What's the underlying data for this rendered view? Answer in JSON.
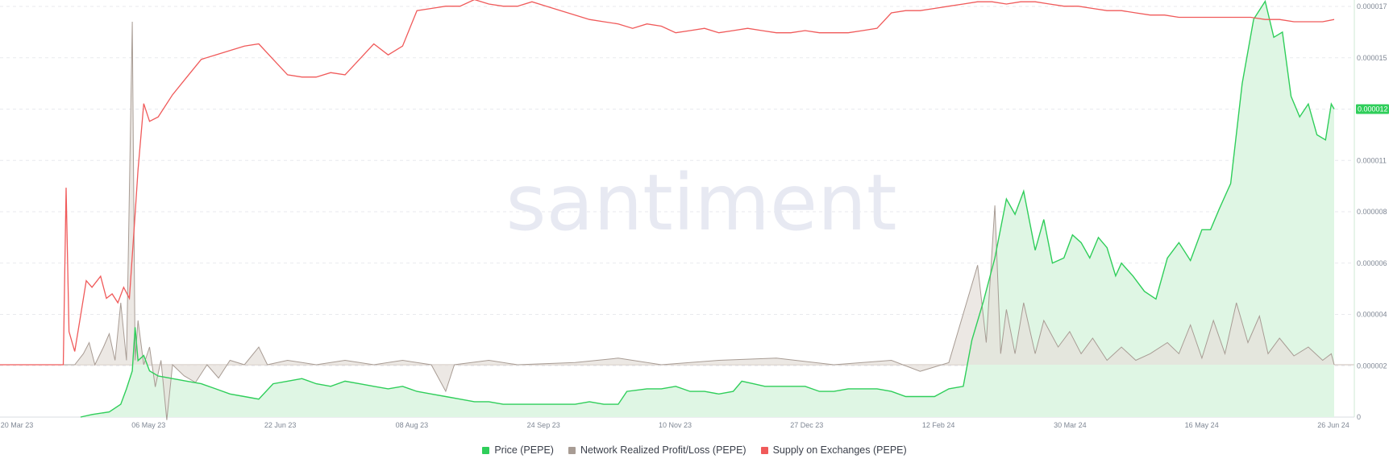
{
  "watermark": "santiment",
  "colors": {
    "price": "#2fce5a",
    "price_fill": "#dff6e4",
    "nrpl": "#a89c94",
    "nrpl_fill": "#e6e0db",
    "supply": "#f05a5a",
    "grid": "#e8eaee",
    "badge": "#2fce5a"
  },
  "legend": [
    {
      "label": "Price (PEPE)",
      "color": "#2fce5a"
    },
    {
      "label": "Network Realized Profit/Loss (PEPE)",
      "color": "#a89c94"
    },
    {
      "label": "Supply on Exchanges (PEPE)",
      "color": "#f05a5a"
    }
  ],
  "price_badge": "0.000012",
  "chart_data": {
    "type": "line",
    "x_tick_labels": [
      "20 Mar 23",
      "06 May 23",
      "22 Jun 23",
      "08 Aug 23",
      "24 Sep 23",
      "10 Nov 23",
      "27 Dec 23",
      "12 Feb 24",
      "30 Mar 24",
      "16 May 24",
      "26 Jun 24"
    ],
    "y_right_tick_labels": [
      "0",
      "0.000002",
      "0.000004",
      "0.000006",
      "0.000008",
      "0.000011",
      "0.000013",
      "0.000015",
      "0.000017"
    ],
    "y_right_range": [
      0,
      1.6e-05
    ],
    "x_range_days": [
      0,
      464
    ],
    "series": [
      {
        "name": "Price (PEPE)",
        "axis": "right",
        "points": [
          [
            0,
            null
          ],
          [
            28,
            0
          ],
          [
            32,
            1e-07
          ],
          [
            38,
            2e-07
          ],
          [
            42,
            5e-07
          ],
          [
            44,
            1.1e-06
          ],
          [
            46,
            1.8e-06
          ],
          [
            47,
            3.5e-06
          ],
          [
            48,
            2.2e-06
          ],
          [
            50,
            2.4e-06
          ],
          [
            52,
            1.8e-06
          ],
          [
            55,
            1.6e-06
          ],
          [
            60,
            1.5e-06
          ],
          [
            65,
            1.4e-06
          ],
          [
            70,
            1.3e-06
          ],
          [
            75,
            1.1e-06
          ],
          [
            80,
            9e-07
          ],
          [
            85,
            8e-07
          ],
          [
            90,
            7e-07
          ],
          [
            95,
            1.3e-06
          ],
          [
            100,
            1.4e-06
          ],
          [
            105,
            1.5e-06
          ],
          [
            110,
            1.3e-06
          ],
          [
            115,
            1.2e-06
          ],
          [
            120,
            1.4e-06
          ],
          [
            125,
            1.3e-06
          ],
          [
            130,
            1.2e-06
          ],
          [
            135,
            1.1e-06
          ],
          [
            140,
            1.2e-06
          ],
          [
            145,
            1e-06
          ],
          [
            150,
            9e-07
          ],
          [
            155,
            8e-07
          ],
          [
            160,
            7e-07
          ],
          [
            165,
            6e-07
          ],
          [
            170,
            6e-07
          ],
          [
            175,
            5e-07
          ],
          [
            180,
            5e-07
          ],
          [
            185,
            5e-07
          ],
          [
            190,
            5e-07
          ],
          [
            195,
            5e-07
          ],
          [
            200,
            5e-07
          ],
          [
            205,
            6e-07
          ],
          [
            210,
            5e-07
          ],
          [
            215,
            5e-07
          ],
          [
            218,
            1e-06
          ],
          [
            225,
            1.1e-06
          ],
          [
            230,
            1.1e-06
          ],
          [
            235,
            1.2e-06
          ],
          [
            240,
            1e-06
          ],
          [
            245,
            1e-06
          ],
          [
            250,
            9e-07
          ],
          [
            255,
            1e-06
          ],
          [
            258,
            1.4e-06
          ],
          [
            262,
            1.3e-06
          ],
          [
            266,
            1.2e-06
          ],
          [
            270,
            1.2e-06
          ],
          [
            275,
            1.2e-06
          ],
          [
            280,
            1.2e-06
          ],
          [
            285,
            1e-06
          ],
          [
            290,
            1e-06
          ],
          [
            295,
            1.1e-06
          ],
          [
            300,
            1.1e-06
          ],
          [
            305,
            1.1e-06
          ],
          [
            310,
            1e-06
          ],
          [
            315,
            8e-07
          ],
          [
            320,
            8e-07
          ],
          [
            325,
            8e-07
          ],
          [
            330,
            1.1e-06
          ],
          [
            335,
            1.2e-06
          ],
          [
            338,
            3e-06
          ],
          [
            342,
            4.5e-06
          ],
          [
            346,
            6.2e-06
          ],
          [
            350,
            8.5e-06
          ],
          [
            353,
            7.9e-06
          ],
          [
            356,
            8.8e-06
          ],
          [
            360,
            6.5e-06
          ],
          [
            363,
            7.7e-06
          ],
          [
            366,
            6e-06
          ],
          [
            370,
            6.2e-06
          ],
          [
            373,
            7.1e-06
          ],
          [
            376,
            6.8e-06
          ],
          [
            379,
            6.2e-06
          ],
          [
            382,
            7e-06
          ],
          [
            385,
            6.6e-06
          ],
          [
            388,
            5.5e-06
          ],
          [
            390,
            6e-06
          ],
          [
            394,
            5.5e-06
          ],
          [
            398,
            4.9e-06
          ],
          [
            402,
            4.6e-06
          ],
          [
            406,
            6.2e-06
          ],
          [
            410,
            6.8e-06
          ],
          [
            414,
            6.1e-06
          ],
          [
            418,
            7.3e-06
          ],
          [
            421,
            7.3e-06
          ],
          [
            424,
            8.1e-06
          ],
          [
            428,
            9.1e-06
          ],
          [
            432,
            1.3e-05
          ],
          [
            436,
            1.55e-05
          ],
          [
            440,
            1.62e-05
          ],
          [
            443,
            1.48e-05
          ],
          [
            446,
            1.5e-05
          ],
          [
            449,
            1.25e-05
          ],
          [
            452,
            1.17e-05
          ],
          [
            455,
            1.22e-05
          ],
          [
            458,
            1.1e-05
          ],
          [
            461,
            1.08e-05
          ],
          [
            463,
            1.22e-05
          ],
          [
            464,
            1.2e-05
          ]
        ]
      },
      {
        "name": "Network Realized Profit/Loss (PEPE)",
        "axis": "left-hidden",
        "points": [
          [
            0,
            0
          ],
          [
            26,
            0
          ],
          [
            29,
            0.05
          ],
          [
            31,
            0.1
          ],
          [
            33,
            0.0
          ],
          [
            36,
            0.08
          ],
          [
            38,
            0.14
          ],
          [
            40,
            0.02
          ],
          [
            42,
            0.28
          ],
          [
            44,
            0.02
          ],
          [
            46,
            1.55
          ],
          [
            47,
            0.02
          ],
          [
            48,
            0.2
          ],
          [
            50,
            0.0
          ],
          [
            52,
            0.08
          ],
          [
            54,
            -0.1
          ],
          [
            56,
            0.02
          ],
          [
            58,
            -0.25
          ],
          [
            60,
            0.0
          ],
          [
            64,
            -0.05
          ],
          [
            68,
            -0.08
          ],
          [
            72,
            0.0
          ],
          [
            76,
            -0.06
          ],
          [
            80,
            0.02
          ],
          [
            85,
            0.0
          ],
          [
            90,
            0.08
          ],
          [
            93,
            0.0
          ],
          [
            100,
            0.02
          ],
          [
            110,
            0.0
          ],
          [
            120,
            0.02
          ],
          [
            130,
            0.0
          ],
          [
            140,
            0.02
          ],
          [
            150,
            0.0
          ],
          [
            155,
            -0.12
          ],
          [
            158,
            0.0
          ],
          [
            170,
            0.02
          ],
          [
            180,
            0.0
          ],
          [
            200,
            0.01
          ],
          [
            215,
            0.03
          ],
          [
            230,
            0.0
          ],
          [
            250,
            0.02
          ],
          [
            270,
            0.03
          ],
          [
            290,
            0.0
          ],
          [
            310,
            0.02
          ],
          [
            320,
            -0.03
          ],
          [
            330,
            0.01
          ],
          [
            340,
            0.45
          ],
          [
            343,
            0.1
          ],
          [
            346,
            0.72
          ],
          [
            348,
            0.05
          ],
          [
            350,
            0.25
          ],
          [
            353,
            0.05
          ],
          [
            356,
            0.28
          ],
          [
            360,
            0.05
          ],
          [
            363,
            0.2
          ],
          [
            368,
            0.08
          ],
          [
            372,
            0.15
          ],
          [
            376,
            0.05
          ],
          [
            380,
            0.12
          ],
          [
            385,
            0.02
          ],
          [
            390,
            0.08
          ],
          [
            395,
            0.02
          ],
          [
            400,
            0.05
          ],
          [
            406,
            0.1
          ],
          [
            410,
            0.05
          ],
          [
            414,
            0.18
          ],
          [
            418,
            0.03
          ],
          [
            422,
            0.2
          ],
          [
            426,
            0.05
          ],
          [
            430,
            0.28
          ],
          [
            434,
            0.1
          ],
          [
            438,
            0.22
          ],
          [
            441,
            0.05
          ],
          [
            445,
            0.12
          ],
          [
            450,
            0.04
          ],
          [
            455,
            0.08
          ],
          [
            460,
            0.02
          ],
          [
            463,
            0.05
          ],
          [
            464,
            0.0
          ]
        ]
      },
      {
        "name": "Supply on Exchanges (PEPE)",
        "axis": "left-hidden",
        "points": [
          [
            0,
            0
          ],
          [
            22,
            0
          ],
          [
            23,
            0.8
          ],
          [
            24,
            0.15
          ],
          [
            26,
            0.06
          ],
          [
            28,
            0.22
          ],
          [
            30,
            0.38
          ],
          [
            32,
            0.35
          ],
          [
            35,
            0.4
          ],
          [
            37,
            0.3
          ],
          [
            39,
            0.32
          ],
          [
            41,
            0.28
          ],
          [
            43,
            0.35
          ],
          [
            45,
            0.3
          ],
          [
            47,
            0.68
          ],
          [
            48,
            0.88
          ],
          [
            50,
            1.18
          ],
          [
            52,
            1.1
          ],
          [
            55,
            1.12
          ],
          [
            60,
            1.22
          ],
          [
            65,
            1.3
          ],
          [
            70,
            1.38
          ],
          [
            75,
            1.4
          ],
          [
            80,
            1.42
          ],
          [
            85,
            1.44
          ],
          [
            90,
            1.45
          ],
          [
            95,
            1.38
          ],
          [
            100,
            1.31
          ],
          [
            105,
            1.3
          ],
          [
            110,
            1.3
          ],
          [
            115,
            1.32
          ],
          [
            120,
            1.31
          ],
          [
            125,
            1.38
          ],
          [
            130,
            1.45
          ],
          [
            135,
            1.4
          ],
          [
            140,
            1.44
          ],
          [
            145,
            1.6
          ],
          [
            150,
            1.61
          ],
          [
            155,
            1.62
          ],
          [
            160,
            1.62
          ],
          [
            165,
            1.65
          ],
          [
            170,
            1.63
          ],
          [
            175,
            1.62
          ],
          [
            180,
            1.62
          ],
          [
            185,
            1.64
          ],
          [
            190,
            1.62
          ],
          [
            195,
            1.6
          ],
          [
            200,
            1.58
          ],
          [
            205,
            1.56
          ],
          [
            210,
            1.55
          ],
          [
            215,
            1.54
          ],
          [
            220,
            1.52
          ],
          [
            225,
            1.54
          ],
          [
            230,
            1.53
          ],
          [
            235,
            1.5
          ],
          [
            240,
            1.51
          ],
          [
            245,
            1.52
          ],
          [
            250,
            1.5
          ],
          [
            255,
            1.51
          ],
          [
            260,
            1.52
          ],
          [
            265,
            1.51
          ],
          [
            270,
            1.5
          ],
          [
            275,
            1.5
          ],
          [
            280,
            1.51
          ],
          [
            285,
            1.5
          ],
          [
            290,
            1.5
          ],
          [
            295,
            1.5
          ],
          [
            300,
            1.51
          ],
          [
            305,
            1.52
          ],
          [
            310,
            1.59
          ],
          [
            315,
            1.6
          ],
          [
            320,
            1.6
          ],
          [
            325,
            1.61
          ],
          [
            330,
            1.62
          ],
          [
            335,
            1.63
          ],
          [
            340,
            1.64
          ],
          [
            345,
            1.64
          ],
          [
            350,
            1.63
          ],
          [
            355,
            1.64
          ],
          [
            360,
            1.64
          ],
          [
            365,
            1.63
          ],
          [
            370,
            1.62
          ],
          [
            375,
            1.62
          ],
          [
            380,
            1.61
          ],
          [
            385,
            1.6
          ],
          [
            390,
            1.6
          ],
          [
            395,
            1.59
          ],
          [
            400,
            1.58
          ],
          [
            405,
            1.58
          ],
          [
            410,
            1.57
          ],
          [
            415,
            1.57
          ],
          [
            420,
            1.57
          ],
          [
            425,
            1.57
          ],
          [
            430,
            1.57
          ],
          [
            435,
            1.57
          ],
          [
            440,
            1.56
          ],
          [
            445,
            1.56
          ],
          [
            450,
            1.55
          ],
          [
            455,
            1.55
          ],
          [
            460,
            1.55
          ],
          [
            464,
            1.56
          ]
        ]
      }
    ]
  }
}
